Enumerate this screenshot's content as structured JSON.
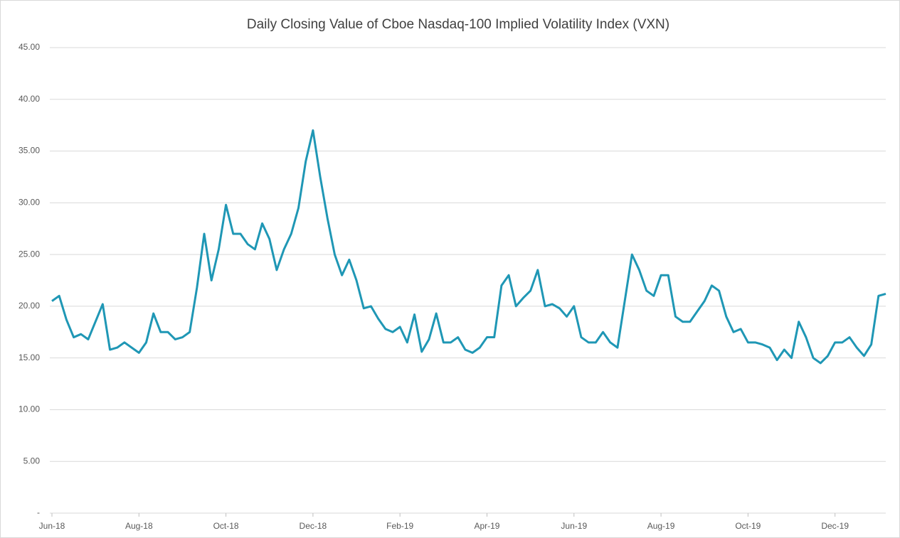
{
  "chart_data": {
    "type": "line",
    "title": "Daily Closing Value of Cboe Nasdaq-100 Implied Volatility Index (VXN)",
    "categories": [
      "Jun-18",
      null,
      null,
      null,
      null,
      null,
      null,
      null,
      null,
      null,
      null,
      null,
      "Aug-18",
      null,
      null,
      null,
      null,
      null,
      null,
      null,
      null,
      null,
      null,
      null,
      "Oct-18",
      null,
      null,
      null,
      null,
      null,
      null,
      null,
      null,
      null,
      null,
      null,
      "Dec-18",
      null,
      null,
      null,
      null,
      null,
      null,
      null,
      null,
      null,
      null,
      null,
      "Feb-19",
      null,
      null,
      null,
      null,
      null,
      null,
      null,
      null,
      null,
      null,
      null,
      "Apr-19",
      null,
      null,
      null,
      null,
      null,
      null,
      null,
      null,
      null,
      null,
      null,
      "Jun-19",
      null,
      null,
      null,
      null,
      null,
      null,
      null,
      null,
      null,
      null,
      null,
      "Aug-19",
      null,
      null,
      null,
      null,
      null,
      null,
      null,
      null,
      null,
      null,
      null,
      "Oct-19",
      null,
      null,
      null,
      null,
      null,
      null,
      null,
      null,
      null,
      null,
      null,
      "Dec-19",
      null,
      null,
      null,
      null,
      null,
      null,
      null
    ],
    "series": [
      {
        "name": "VXN",
        "color": "#1f97b5",
        "values": [
          20.5,
          21,
          18.7,
          17,
          17.3,
          16.8,
          18.5,
          20.2,
          15.8,
          16,
          16.5,
          16,
          15.5,
          16.5,
          19.3,
          17.5,
          17.5,
          16.8,
          17,
          17.5,
          21.8,
          27,
          22.5,
          25.5,
          29.8,
          27,
          27,
          26,
          25.5,
          28,
          26.5,
          23.5,
          25.5,
          27,
          29.5,
          34,
          37,
          32.5,
          28.5,
          25,
          23,
          24.5,
          22.5,
          19.8,
          20,
          18.8,
          17.8,
          17.5,
          18,
          16.5,
          19.2,
          15.6,
          16.8,
          19.3,
          16.5,
          16.5,
          17,
          15.8,
          15.5,
          16,
          17,
          17,
          22,
          23,
          20,
          20.8,
          21.5,
          23.5,
          20,
          20.2,
          19.8,
          19,
          20,
          17,
          16.5,
          16.5,
          17.5,
          16.5,
          16,
          20.5,
          25,
          23.5,
          21.5,
          21,
          23,
          23,
          19,
          18.5,
          18.5,
          19.5,
          20.5,
          22,
          21.5,
          19,
          17.5,
          17.8,
          16.5,
          16.5,
          16.3,
          16,
          14.8,
          15.8,
          15,
          18.5,
          17,
          15,
          14.5,
          15.2,
          16.5,
          16.5,
          17,
          16,
          15.2,
          16.3,
          21,
          21.2
        ]
      }
    ],
    "ylim": [
      0,
      45
    ],
    "yticks": [
      {
        "value": 0,
        "label": "-"
      },
      {
        "value": 5,
        "label": "5.00"
      },
      {
        "value": 10,
        "label": "10.00"
      },
      {
        "value": 15,
        "label": "15.00"
      },
      {
        "value": 20,
        "label": "20.00"
      },
      {
        "value": 25,
        "label": "25.00"
      },
      {
        "value": 30,
        "label": "30.00"
      },
      {
        "value": 35,
        "label": "35.00"
      },
      {
        "value": 40,
        "label": "40.00"
      },
      {
        "value": 45,
        "label": "45.00"
      }
    ],
    "grid": true
  }
}
